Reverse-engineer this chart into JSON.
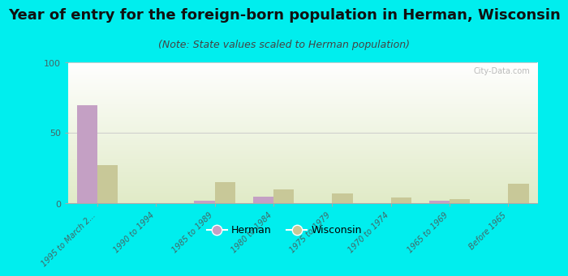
{
  "title": "Year of entry for the foreign-born population in Herman, Wisconsin",
  "subtitle": "(Note: State values scaled to Herman population)",
  "categories": [
    "1995 to March 2...",
    "1990 to 1994",
    "1985 to 1989",
    "1980 to 1984",
    "1975 to 1979",
    "1970 to 1974",
    "1965 to 1969",
    "Before 1965"
  ],
  "herman_values": [
    70,
    0,
    2,
    5,
    0,
    0,
    2,
    0
  ],
  "wisconsin_values": [
    27,
    0,
    15,
    10,
    7,
    4,
    3,
    14
  ],
  "herman_color": "#c4a0c4",
  "wisconsin_color": "#c8c898",
  "background_color": "#00eeee",
  "ylim": [
    0,
    100
  ],
  "yticks": [
    0,
    50,
    100
  ],
  "bar_width": 0.35,
  "title_fontsize": 13,
  "subtitle_fontsize": 9,
  "watermark": "City-Data.com"
}
